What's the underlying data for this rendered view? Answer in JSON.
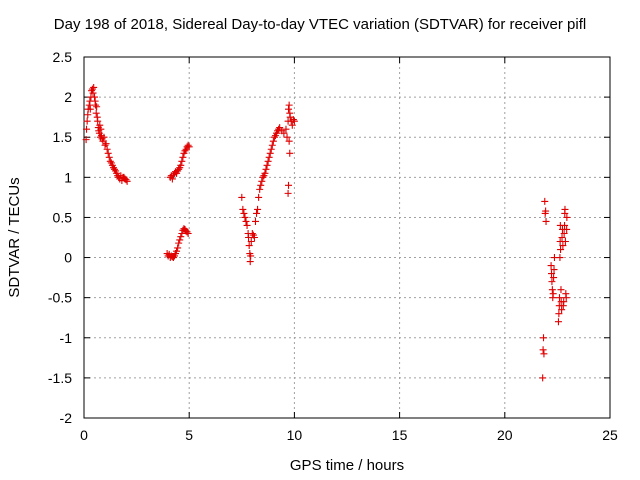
{
  "chart_data": {
    "type": "scatter",
    "title": "Day 198 of 2018, Sidereal Day-to-day VTEC variation (SDTVAR) for receiver pifl",
    "xlabel": "GPS time / hours",
    "ylabel": "SDTVAR / TECUs",
    "xlim": [
      0,
      25
    ],
    "ylim": [
      -2,
      2.5
    ],
    "x_ticks": [
      0,
      5,
      10,
      15,
      20,
      25
    ],
    "x_tick_labels": [
      "0",
      "5",
      "10",
      "15",
      "20",
      "25"
    ],
    "y_ticks": [
      -2,
      -1.5,
      -1,
      -0.5,
      0,
      0.5,
      1,
      1.5,
      2,
      2.5
    ],
    "y_tick_labels": [
      "-2",
      "-1.5",
      "-1",
      "-0.5",
      "0",
      "0.5",
      "1",
      "1.5",
      "2",
      "2.5"
    ],
    "grid": true,
    "marker": "+",
    "marker_color": "#e00000",
    "series": [
      {
        "points": [
          [
            0.1,
            1.47
          ],
          [
            0.12,
            1.6
          ],
          [
            0.15,
            1.7
          ],
          [
            0.18,
            1.78
          ],
          [
            0.2,
            1.85
          ],
          [
            0.25,
            1.9
          ],
          [
            0.28,
            1.95
          ],
          [
            0.3,
            1.85
          ],
          [
            0.33,
            2.0
          ],
          [
            0.36,
            2.08
          ],
          [
            0.4,
            2.1
          ],
          [
            0.43,
            2.05
          ],
          [
            0.46,
            2.12
          ],
          [
            0.5,
            2.0
          ],
          [
            0.53,
            1.95
          ],
          [
            0.55,
            1.9
          ],
          [
            0.58,
            1.8
          ],
          [
            0.6,
            1.88
          ],
          [
            0.63,
            1.75
          ],
          [
            0.65,
            1.7
          ],
          [
            0.68,
            1.62
          ],
          [
            0.7,
            1.58
          ],
          [
            0.73,
            1.55
          ],
          [
            0.75,
            1.65
          ],
          [
            0.78,
            1.5
          ],
          [
            0.8,
            1.6
          ],
          [
            0.83,
            1.52
          ],
          [
            0.86,
            1.48
          ],
          [
            0.9,
            1.45
          ],
          [
            0.95,
            1.5
          ],
          [
            1.0,
            1.4
          ],
          [
            1.05,
            1.42
          ],
          [
            1.1,
            1.35
          ],
          [
            1.15,
            1.3
          ],
          [
            1.2,
            1.25
          ],
          [
            1.25,
            1.2
          ],
          [
            1.3,
            1.18
          ],
          [
            1.35,
            1.15
          ],
          [
            1.4,
            1.12
          ],
          [
            1.45,
            1.1
          ],
          [
            1.5,
            1.08
          ],
          [
            1.55,
            1.05
          ],
          [
            1.6,
            1.02
          ],
          [
            1.65,
            1.0
          ],
          [
            1.7,
            0.98
          ],
          [
            1.75,
            1.02
          ],
          [
            1.8,
            0.96
          ],
          [
            1.85,
            1.0
          ],
          [
            1.9,
            1.0
          ],
          [
            1.95,
            0.98
          ],
          [
            2.0,
            0.97
          ],
          [
            2.05,
            0.95
          ],
          [
            3.95,
            0.05
          ],
          [
            4.0,
            0.02
          ],
          [
            4.05,
            0.04
          ],
          [
            4.1,
            0.0
          ],
          [
            4.15,
            0.02
          ],
          [
            4.2,
            0.01
          ],
          [
            4.25,
            0.0
          ],
          [
            4.3,
            0.02
          ],
          [
            4.35,
            0.05
          ],
          [
            4.4,
            0.08
          ],
          [
            4.45,
            0.12
          ],
          [
            4.5,
            0.18
          ],
          [
            4.55,
            0.22
          ],
          [
            4.6,
            0.26
          ],
          [
            4.65,
            0.3
          ],
          [
            4.7,
            0.34
          ],
          [
            4.75,
            0.36
          ],
          [
            4.8,
            0.35
          ],
          [
            4.85,
            0.33
          ],
          [
            4.9,
            0.32
          ],
          [
            4.95,
            0.3
          ],
          [
            4.1,
            1.0
          ],
          [
            4.15,
            1.02
          ],
          [
            4.2,
            0.98
          ],
          [
            4.25,
            1.03
          ],
          [
            4.3,
            1.05
          ],
          [
            4.35,
            1.07
          ],
          [
            4.4,
            1.05
          ],
          [
            4.45,
            1.08
          ],
          [
            4.5,
            1.1
          ],
          [
            4.55,
            1.12
          ],
          [
            4.6,
            1.15
          ],
          [
            4.65,
            1.2
          ],
          [
            4.7,
            1.25
          ],
          [
            4.75,
            1.3
          ],
          [
            4.8,
            1.33
          ],
          [
            4.85,
            1.35
          ],
          [
            4.9,
            1.38
          ],
          [
            4.95,
            1.4
          ],
          [
            5.0,
            1.38
          ],
          [
            7.5,
            0.75
          ],
          [
            7.55,
            0.6
          ],
          [
            7.6,
            0.55
          ],
          [
            7.65,
            0.5
          ],
          [
            7.7,
            0.45
          ],
          [
            7.75,
            0.4
          ],
          [
            7.8,
            0.3
          ],
          [
            7.82,
            0.25
          ],
          [
            7.85,
            0.15
          ],
          [
            7.88,
            0.05
          ],
          [
            7.9,
            -0.05
          ],
          [
            7.92,
            0.02
          ],
          [
            7.95,
            0.2
          ],
          [
            8.0,
            0.3
          ],
          [
            8.05,
            0.28
          ],
          [
            8.1,
            0.25
          ],
          [
            8.15,
            0.45
          ],
          [
            8.2,
            0.55
          ],
          [
            8.25,
            0.6
          ],
          [
            8.3,
            0.75
          ],
          [
            8.35,
            0.85
          ],
          [
            8.4,
            0.9
          ],
          [
            8.45,
            0.95
          ],
          [
            8.5,
            1.0
          ],
          [
            8.55,
            1.02
          ],
          [
            8.6,
            1.05
          ],
          [
            8.65,
            1.1
          ],
          [
            8.7,
            1.15
          ],
          [
            8.75,
            1.2
          ],
          [
            8.8,
            1.25
          ],
          [
            8.85,
            1.3
          ],
          [
            8.9,
            1.35
          ],
          [
            8.95,
            1.4
          ],
          [
            9.0,
            1.45
          ],
          [
            9.05,
            1.5
          ],
          [
            9.1,
            1.52
          ],
          [
            9.15,
            1.55
          ],
          [
            9.2,
            1.58
          ],
          [
            9.25,
            1.6
          ],
          [
            9.3,
            1.62
          ],
          [
            9.4,
            1.58
          ],
          [
            9.5,
            1.55
          ],
          [
            9.6,
            1.6
          ],
          [
            9.65,
            1.5
          ],
          [
            9.7,
            1.7
          ],
          [
            9.72,
            1.85
          ],
          [
            9.75,
            1.9
          ],
          [
            9.78,
            1.8
          ],
          [
            9.8,
            1.75
          ],
          [
            9.85,
            1.7
          ],
          [
            9.9,
            1.65
          ],
          [
            9.95,
            1.72
          ],
          [
            10.0,
            1.7
          ],
          [
            9.7,
            0.8
          ],
          [
            9.72,
            0.9
          ],
          [
            9.75,
            1.45
          ],
          [
            9.78,
            1.3
          ],
          [
            21.8,
            -1.5
          ],
          [
            21.82,
            -1.15
          ],
          [
            21.84,
            -1.0
          ],
          [
            21.86,
            -1.2
          ],
          [
            21.9,
            0.7
          ],
          [
            21.92,
            0.55
          ],
          [
            21.94,
            0.58
          ],
          [
            21.96,
            0.45
          ],
          [
            22.2,
            -0.1
          ],
          [
            22.22,
            -0.2
          ],
          [
            22.24,
            -0.3
          ],
          [
            22.26,
            -0.4
          ],
          [
            22.28,
            -0.5
          ],
          [
            22.3,
            -0.45
          ],
          [
            22.32,
            -0.25
          ],
          [
            22.34,
            -0.15
          ],
          [
            22.36,
            0.0
          ],
          [
            22.55,
            -0.8
          ],
          [
            22.57,
            -0.7
          ],
          [
            22.59,
            -0.6
          ],
          [
            22.6,
            -0.5
          ],
          [
            22.62,
            0.0
          ],
          [
            22.63,
            0.2
          ],
          [
            22.64,
            0.4
          ],
          [
            22.65,
            0.1
          ],
          [
            22.67,
            -0.4
          ],
          [
            22.68,
            -0.55
          ],
          [
            22.7,
            -0.65
          ],
          [
            22.72,
            0.25
          ],
          [
            22.74,
            0.35
          ],
          [
            22.76,
            0.15
          ],
          [
            22.78,
            -0.6
          ],
          [
            22.8,
            -0.55
          ],
          [
            22.82,
            0.3
          ],
          [
            22.84,
            0.4
          ],
          [
            22.85,
            0.55
          ],
          [
            22.86,
            0.6
          ],
          [
            22.88,
            0.2
          ],
          [
            22.9,
            -0.45
          ],
          [
            22.92,
            -0.5
          ],
          [
            22.94,
            0.35
          ],
          [
            22.95,
            0.5
          ]
        ]
      }
    ]
  }
}
